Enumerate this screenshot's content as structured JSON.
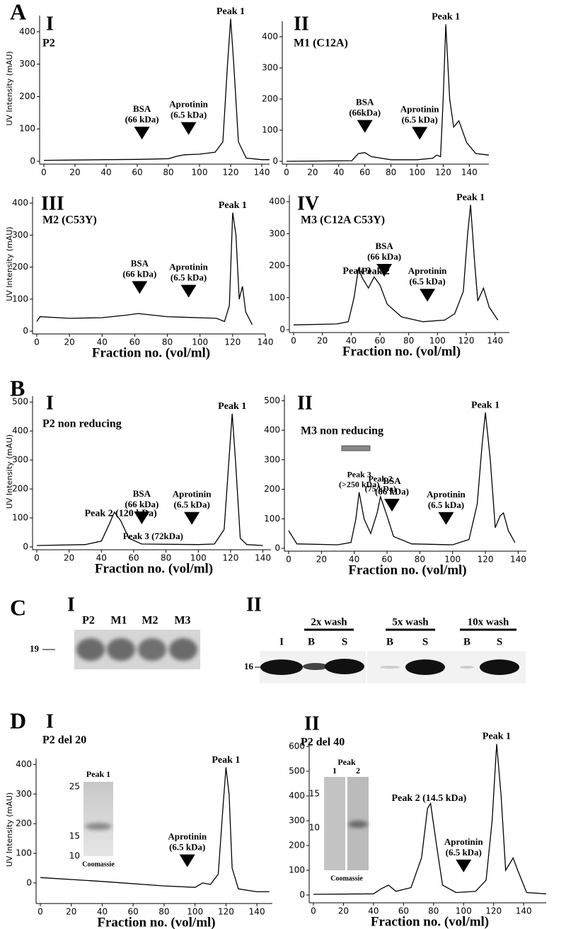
{
  "panel_labels": [
    "A",
    "B",
    "C",
    "D"
  ],
  "chart_data": [
    {
      "type": "line",
      "panel_number": "I",
      "title": "P2",
      "ylabel": "UV Intensity (mAU)",
      "color": "#000000",
      "x": [
        0,
        20,
        40,
        60,
        80,
        85,
        90,
        100,
        110,
        115,
        118,
        120,
        122,
        125,
        130,
        140,
        145
      ],
      "values": [
        3,
        4,
        5,
        6,
        8,
        15,
        20,
        22,
        28,
        60,
        300,
        440,
        300,
        60,
        10,
        5,
        5
      ],
      "xlim": [
        0,
        145
      ],
      "ylim": [
        0,
        450
      ],
      "xticks": [
        0,
        20,
        40,
        60,
        80,
        100,
        120,
        140
      ],
      "yticks": [
        0,
        100,
        200,
        300,
        400
      ],
      "peaks": [
        {
          "lines": [
            "Peak 1"
          ],
          "x": 120
        }
      ],
      "markers": [
        {
          "lines": [
            "BSA",
            "(66 kDa)"
          ],
          "x": 63
        },
        {
          "lines": [
            "Aprotinin",
            "(6.5 kDa)"
          ],
          "x": 93
        }
      ]
    },
    {
      "type": "line",
      "panel_number": "II",
      "title": "M1 (C12A)",
      "color": "#000000",
      "x": [
        0,
        50,
        55,
        60,
        65,
        80,
        100,
        112,
        115,
        118,
        120,
        122,
        125,
        128,
        132,
        138,
        145,
        155
      ],
      "values": [
        0,
        2,
        25,
        28,
        15,
        5,
        5,
        10,
        20,
        15,
        200,
        440,
        200,
        110,
        130,
        60,
        25,
        20
      ],
      "xlim": [
        0,
        155
      ],
      "ylim": [
        0,
        450
      ],
      "xticks": [
        0,
        20,
        40,
        60,
        80,
        100,
        120,
        140
      ],
      "yticks": [
        0,
        100,
        200,
        300,
        400
      ],
      "peaks": [
        {
          "lines": [
            "Peak 1"
          ],
          "x": 122
        }
      ],
      "markers": [
        {
          "lines": [
            "BSA",
            "(66kDa)"
          ],
          "x": 60
        },
        {
          "lines": [
            "Aprotinin",
            "(6.5 kDa)"
          ],
          "x": 102
        }
      ]
    },
    {
      "type": "line",
      "panel_number": "III",
      "title": "M2 (C53Y)",
      "ylabel": "UV Intensity (mAU)",
      "xlabel": "Fraction no. (vol/ml)",
      "color": "#000000",
      "x": [
        0,
        2,
        20,
        40,
        55,
        62,
        80,
        110,
        115,
        118,
        120,
        122,
        124,
        126,
        128,
        130,
        132
      ],
      "values": [
        30,
        45,
        40,
        42,
        50,
        55,
        45,
        40,
        30,
        80,
        370,
        300,
        100,
        140,
        60,
        40,
        20
      ],
      "xlim": [
        0,
        140
      ],
      "ylim": [
        0,
        420
      ],
      "xticks": [
        0,
        20,
        40,
        60,
        80,
        100,
        120,
        140
      ],
      "yticks": [
        0,
        100,
        200,
        300,
        400
      ],
      "peaks": [
        {
          "lines": [
            "Peak 1"
          ],
          "x": 120
        }
      ],
      "markers": [
        {
          "lines": [
            "BSA",
            "(66 kDa)"
          ],
          "x": 63
        },
        {
          "lines": [
            "Aprotinin",
            "(6.5 kDa)"
          ],
          "x": 93
        }
      ]
    },
    {
      "type": "line",
      "panel_number": "IV",
      "title": "M3 (C12A C53Y)",
      "xlabel": "Fraction no. (vol/ml)",
      "color": "#000000",
      "x": [
        0,
        30,
        38,
        42,
        45,
        48,
        52,
        56,
        60,
        65,
        75,
        90,
        105,
        112,
        118,
        121,
        123,
        126,
        128,
        132,
        136,
        142
      ],
      "values": [
        15,
        18,
        25,
        100,
        190,
        160,
        130,
        165,
        140,
        80,
        40,
        25,
        30,
        50,
        120,
        300,
        390,
        200,
        90,
        130,
        70,
        30
      ],
      "xlim": [
        0,
        150
      ],
      "ylim": [
        0,
        420
      ],
      "xticks": [
        0,
        20,
        40,
        60,
        80,
        100,
        120,
        140
      ],
      "yticks": [
        0,
        100,
        200,
        300,
        400
      ],
      "peaks": [
        {
          "lines": [
            "Peak 1"
          ],
          "x": 123
        },
        {
          "lines": [
            "Peak 2"
          ],
          "x": 57
        },
        {
          "lines": [
            "Peak 3"
          ],
          "x": 44
        }
      ],
      "markers": [
        {
          "lines": [
            "BSA",
            "(66 kDa)"
          ],
          "x": 63
        },
        {
          "lines": [
            "Aprotinin",
            "(6.5 kDa)"
          ],
          "x": 93
        }
      ]
    },
    {
      "type": "line",
      "panel_number": "I",
      "title": "P2 non reducing",
      "ylabel": "UV Intensity (mAU)",
      "xlabel": "Fraction no. (vol/ml)",
      "color": "#000000",
      "x": [
        0,
        30,
        40,
        45,
        48,
        52,
        57,
        65,
        100,
        110,
        116,
        119,
        121,
        123,
        126,
        130,
        140
      ],
      "values": [
        5,
        8,
        20,
        80,
        120,
        90,
        30,
        10,
        8,
        10,
        60,
        300,
        460,
        300,
        30,
        8,
        5
      ],
      "xlim": [
        0,
        145
      ],
      "ylim": [
        0,
        520
      ],
      "xticks": [
        0,
        20,
        40,
        60,
        80,
        100,
        120,
        140
      ],
      "yticks": [
        0,
        100,
        200,
        300,
        400,
        500
      ],
      "peaks": [
        {
          "lines": [
            "Peak 1"
          ],
          "x": 121
        },
        {
          "lines": [
            "Peak 2 (120 kDa)"
          ],
          "x": 52
        }
      ],
      "notes": [
        {
          "lines": [
            "Peak 3 (72kDa)"
          ],
          "x": 72
        }
      ],
      "markers": [
        {
          "lines": [
            "BSA",
            "(66 kDa)"
          ],
          "x": 65
        },
        {
          "lines": [
            "Aprotinin",
            "(6.5 kDa)"
          ],
          "x": 96
        }
      ]
    },
    {
      "type": "line",
      "panel_number": "II",
      "title": "M3 non reducing",
      "xlabel": "Fraction no. (vol/ml)",
      "color": "#000000",
      "x": [
        0,
        5,
        30,
        38,
        41,
        43,
        46,
        50,
        54,
        56,
        60,
        64,
        75,
        100,
        110,
        115,
        118,
        120,
        123,
        126,
        129,
        131,
        134,
        138
      ],
      "values": [
        60,
        15,
        12,
        20,
        100,
        190,
        100,
        50,
        120,
        175,
        110,
        40,
        15,
        12,
        30,
        150,
        350,
        460,
        300,
        70,
        110,
        120,
        60,
        20
      ],
      "xlim": [
        0,
        145
      ],
      "ylim": [
        0,
        520
      ],
      "xticks": [
        0,
        20,
        40,
        60,
        80,
        100,
        120,
        140
      ],
      "yticks": [
        0,
        100,
        200,
        300,
        400,
        500
      ],
      "peaks": [
        {
          "lines": [
            "Peak 1"
          ],
          "x": 120
        },
        {
          "lines": [
            "Peak 2",
            "(75 kDa)"
          ],
          "x": 56
        },
        {
          "lines": [
            "Peak 3",
            "(>250 kDa)"
          ],
          "x": 43
        }
      ],
      "markers": [
        {
          "lines": [
            "BSA",
            "(66 kDa)"
          ],
          "x": 63
        },
        {
          "lines": [
            "Aprotinin",
            "(6.5 kDa)"
          ],
          "x": 96
        }
      ]
    },
    {
      "type": "line",
      "panel_number": "I",
      "title": "P2 del 20",
      "ylabel": "UV Intensity (mAU)",
      "xlabel": "Fraction no. (vol/ml)",
      "color": "#000000",
      "x": [
        0,
        40,
        80,
        100,
        105,
        110,
        115,
        118,
        120,
        122,
        124,
        128,
        140,
        148
      ],
      "values": [
        18,
        5,
        -10,
        -15,
        0,
        -5,
        30,
        250,
        390,
        300,
        50,
        -20,
        -30,
        -30
      ],
      "xlim": [
        0,
        150
      ],
      "ylim": [
        -60,
        420
      ],
      "xticks": [
        0,
        20,
        40,
        60,
        80,
        100,
        120,
        140
      ],
      "yticks": [
        0,
        100,
        200,
        300,
        400
      ],
      "peaks": [
        {
          "lines": [
            "Peak 1"
          ],
          "x": 120
        }
      ],
      "markers": [
        {
          "lines": [
            "Aprotinin",
            "(6.5 kDa)"
          ],
          "x": 95
        }
      ],
      "inset": {
        "title": "Peak 1",
        "ladder": [
          25,
          15,
          10
        ],
        "caption": "Coomassie"
      }
    },
    {
      "type": "line",
      "panel_number": "II",
      "title": "P2 del 40",
      "xlabel": "Fraction no. (vol/ml)",
      "color": "#000000",
      "x": [
        0,
        40,
        45,
        50,
        55,
        65,
        72,
        76,
        78,
        82,
        86,
        95,
        108,
        115,
        119,
        122,
        125,
        128,
        131,
        133,
        136,
        142,
        155
      ],
      "values": [
        3,
        5,
        25,
        40,
        15,
        30,
        150,
        350,
        370,
        200,
        40,
        10,
        15,
        60,
        300,
        610,
        400,
        100,
        130,
        150,
        100,
        10,
        5
      ],
      "xlim": [
        0,
        155
      ],
      "ylim": [
        -20,
        620
      ],
      "xticks": [
        0,
        20,
        40,
        60,
        80,
        100,
        120,
        140
      ],
      "yticks": [
        0,
        100,
        200,
        300,
        400,
        500,
        600
      ],
      "peaks": [
        {
          "lines": [
            "Peak 1"
          ],
          "x": 122
        },
        {
          "lines": [
            "Peak 2 (14.5 kDa)"
          ],
          "x": 77
        }
      ],
      "markers": [
        {
          "lines": [
            "Aprotinin",
            "(6.5 kDa)"
          ],
          "x": 100
        }
      ],
      "inset": {
        "title": "Peak",
        "lanes": [
          "1",
          "2"
        ],
        "ladder": [
          15,
          10
        ],
        "caption": "Coomassie"
      }
    }
  ],
  "panel_c": {
    "left": {
      "number": "I",
      "lanes": [
        "P2",
        "M1",
        "M2",
        "M3"
      ],
      "marker": 19
    },
    "right": {
      "number": "II",
      "groups": [
        "2x wash",
        "5x wash",
        "10x wash"
      ],
      "lanes": [
        "I",
        "B",
        "S",
        "B",
        "S",
        "B",
        "S"
      ],
      "marker": 16
    }
  }
}
